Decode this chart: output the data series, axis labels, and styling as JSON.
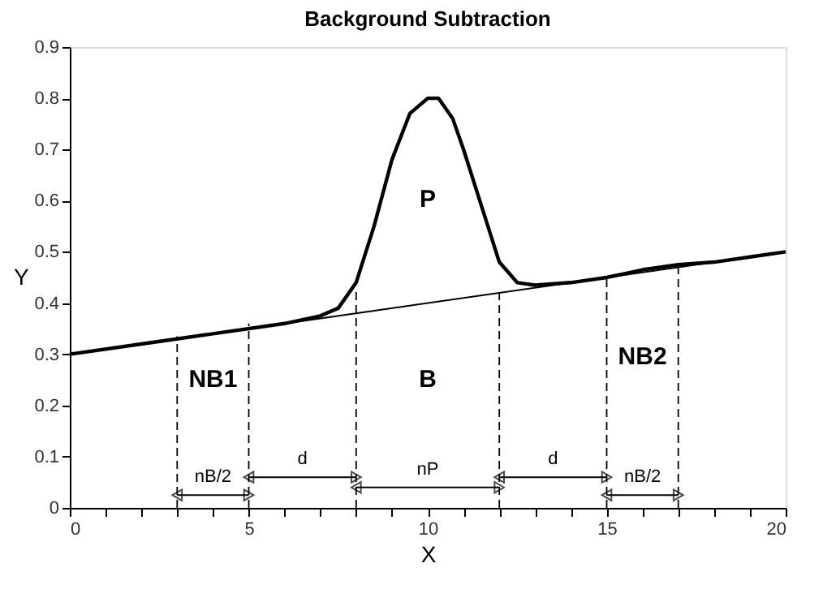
{
  "chart_data": {
    "type": "line",
    "title": "Background Subtraction",
    "xlabel": "X",
    "ylabel": "Y",
    "xlim": [
      0,
      20
    ],
    "ylim": [
      0,
      0.9
    ],
    "xticks": [
      0,
      {
        "value": 1,
        "label": null
      },
      {
        "value": 2,
        "label": null
      },
      {
        "value": 3,
        "label": null
      },
      {
        "value": 4,
        "label": null
      },
      5,
      {
        "value": 6,
        "label": null
      },
      {
        "value": 7,
        "label": null
      },
      {
        "value": 8,
        "label": null
      },
      {
        "value": 9,
        "label": null
      },
      10,
      {
        "value": 11,
        "label": null
      },
      {
        "value": 12,
        "label": null
      },
      {
        "value": 13,
        "label": null
      },
      {
        "value": 14,
        "label": null
      },
      15,
      {
        "value": 16,
        "label": null
      },
      {
        "value": 17,
        "label": null
      },
      {
        "value": 18,
        "label": null
      },
      {
        "value": 19,
        "label": null
      },
      20
    ],
    "yticks": [
      0,
      0.1,
      0.2,
      0.3,
      0.4,
      0.5,
      0.6,
      0.7,
      0.8,
      0.9
    ],
    "grid": false,
    "marker": "none",
    "series": [
      {
        "color": "#000000",
        "x": [
          0,
          2,
          4,
          6,
          7,
          7.5,
          8,
          8.5,
          9,
          9.5,
          10,
          10.3,
          10.7,
          11,
          11.5,
          12,
          12.5,
          13,
          14,
          15,
          16,
          17,
          18,
          19,
          20
        ],
        "values": [
          0.3,
          0.32,
          0.34,
          0.36,
          0.375,
          0.39,
          0.44,
          0.55,
          0.68,
          0.77,
          0.8,
          0.8,
          0.76,
          0.7,
          0.59,
          0.48,
          0.44,
          0.435,
          0.44,
          0.45,
          0.465,
          0.475,
          0.48,
          0.49,
          0.5
        ]
      },
      {
        "color": "#000000",
        "x": [
          0,
          20
        ],
        "values": [
          0.3,
          0.5
        ]
      },
      {
        "color": "#000000",
        "line_style": "dashed",
        "x": [
          3,
          3
        ],
        "values": [
          0,
          0.335
        ]
      },
      {
        "color": "#000000",
        "line_style": "dashed",
        "x": [
          5,
          5
        ],
        "values": [
          0,
          0.36
        ]
      },
      {
        "color": "#000000",
        "line_style": "dashed",
        "x": [
          8,
          8
        ],
        "values": [
          0,
          0.43
        ]
      },
      {
        "color": "#000000",
        "line_style": "dashed",
        "x": [
          12,
          12
        ],
        "values": [
          0,
          0.43
        ]
      },
      {
        "color": "#000000",
        "line_style": "dashed",
        "x": [
          15,
          15
        ],
        "values": [
          0,
          0.455
        ]
      },
      {
        "color": "#000000",
        "line_style": "dashed",
        "x": [
          17,
          17
        ],
        "values": [
          0,
          0.475
        ]
      },
      {
        "color": "#000000",
        "marker": "triangle",
        "x": [
          3,
          5
        ],
        "values": [
          0.025,
          0.025
        ]
      },
      {
        "color": "#000000",
        "marker": "triangle",
        "x": [
          5,
          8
        ],
        "values": [
          0.06,
          0.06
        ]
      },
      {
        "color": "#000000",
        "marker": "triangle",
        "x": [
          8,
          12
        ],
        "values": [
          0.04,
          0.04
        ]
      },
      {
        "color": "#000000",
        "marker": "triangle",
        "x": [
          12,
          15
        ],
        "values": [
          0.06,
          0.06
        ]
      },
      {
        "color": "#000000",
        "marker": "triangle",
        "x": [
          15,
          17
        ],
        "values": [
          0.025,
          0.025
        ]
      }
    ],
    "annotations": [
      "P",
      "B",
      "NB1",
      "NB2",
      {
        "text": "nB/2",
        "x": 4,
        "y": 0.025
      },
      {
        "text": "d",
        "x": 6.5,
        "y": 0.06
      },
      {
        "text": "nP",
        "x": 10,
        "y": 0.04
      },
      {
        "text": "d",
        "x": 13.5,
        "y": 0.06
      },
      {
        "text": "nB/2",
        "x": 16,
        "y": 0.025
      }
    ]
  }
}
